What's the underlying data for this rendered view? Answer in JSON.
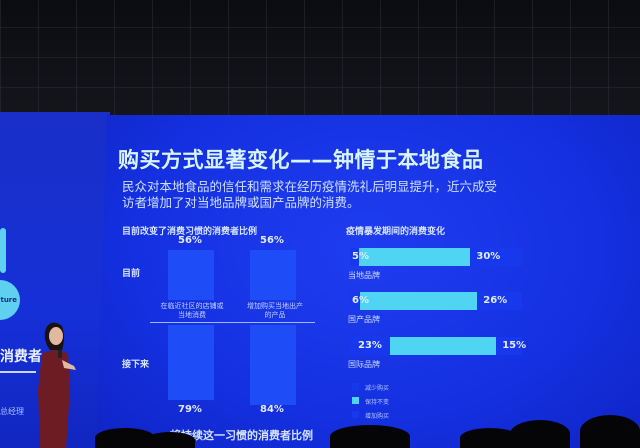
{
  "left_panel": {
    "logo_text": "ture",
    "heading": "消费者",
    "role": "总经理"
  },
  "slide": {
    "title": "购买方式显著变化——钟情于本地食品",
    "subtitle_line1": "民众对本地食品的信任和需求在经历疫情洗礼后明显提升，近六成受",
    "subtitle_line2": "访者增加了对当地品牌或国产品牌的消费。"
  },
  "chart_data": [
    {
      "type": "bar",
      "title": "目前改变了消费习惯的消费者比例",
      "bottom_title": "将持续这一习惯的消费者比例",
      "row_labels": [
        "目前",
        "接下来"
      ],
      "categories": [
        "在临近社区的店铺或当地消费",
        "增加购买当地出产的产品"
      ],
      "category_lines": [
        [
          "在临近社区的店铺或",
          "当地消费"
        ],
        [
          "增加购买当地出产",
          "的产品"
        ]
      ],
      "series": [
        {
          "name": "目前",
          "values": [
            56,
            56
          ],
          "labels": [
            "56%",
            "56%"
          ]
        },
        {
          "name": "接下来",
          "values": [
            79,
            84
          ],
          "labels": [
            "79%",
            "84%"
          ]
        }
      ],
      "colors": {
        "bar": "#1e4cf6"
      }
    },
    {
      "type": "bar",
      "orientation": "horizontal-stacked",
      "title": "疫情暴发期间的消费变化",
      "categories": [
        "当地品牌",
        "国产品牌",
        "国际品牌"
      ],
      "series": [
        {
          "name": "减少购买",
          "values": [
            5,
            6,
            23
          ],
          "labels": [
            "5%",
            "6%",
            "23%"
          ],
          "color": "#1838ee"
        },
        {
          "name": "保持不变",
          "color": "#4fd4f4"
        },
        {
          "name": "增加购买",
          "values": [
            30,
            26,
            15
          ],
          "labels": [
            "30%",
            "26%",
            "15%"
          ],
          "color": "#1838ee"
        }
      ],
      "legend": "bottom-left"
    }
  ]
}
